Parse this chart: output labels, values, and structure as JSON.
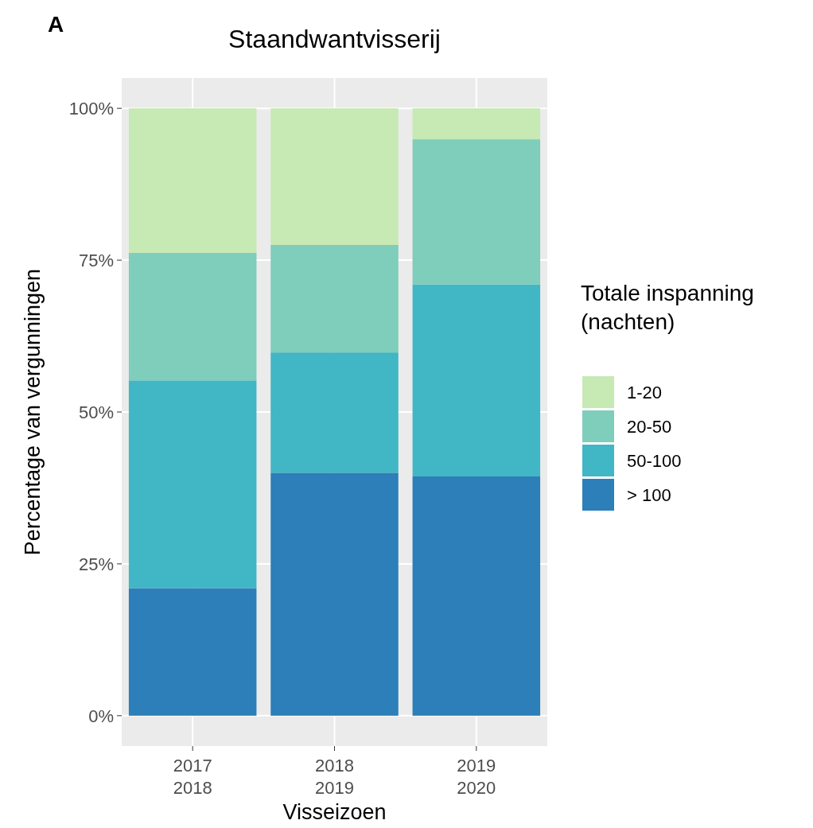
{
  "chart_data": {
    "type": "bar",
    "title": "Staandwantvisserij",
    "xlabel": "Visseizoen",
    "ylabel": "Percentage van vergunningen",
    "legend_title": "Totale inspanning\n(nachten)",
    "annotations": [
      "A"
    ],
    "categories": [
      "2017\n2018",
      "2018\n2019",
      "2019\n2020"
    ],
    "stacked": true,
    "series": [
      {
        "name": "> 100",
        "color": "#2c7fb8",
        "values": [
          21,
          40,
          39.4
        ]
      },
      {
        "name": "50-100",
        "color": "#41b6c4",
        "values": [
          34.2,
          19.8,
          31.6
        ]
      },
      {
        "name": "20-50",
        "color": "#7fcdbb",
        "values": [
          21,
          17.7,
          23.9
        ]
      },
      {
        "name": "1-20",
        "color": "#c7e9b4",
        "values": [
          23.8,
          22.5,
          5.1
        ]
      }
    ],
    "ylim": [
      -5,
      105
    ],
    "yticks": [
      {
        "value": 0,
        "label": "0%"
      },
      {
        "value": 25,
        "label": "25%"
      },
      {
        "value": 50,
        "label": "50%"
      },
      {
        "value": 75,
        "label": "75%"
      },
      {
        "value": 100,
        "label": "100%"
      }
    ],
    "grid": true,
    "legend": "right"
  }
}
